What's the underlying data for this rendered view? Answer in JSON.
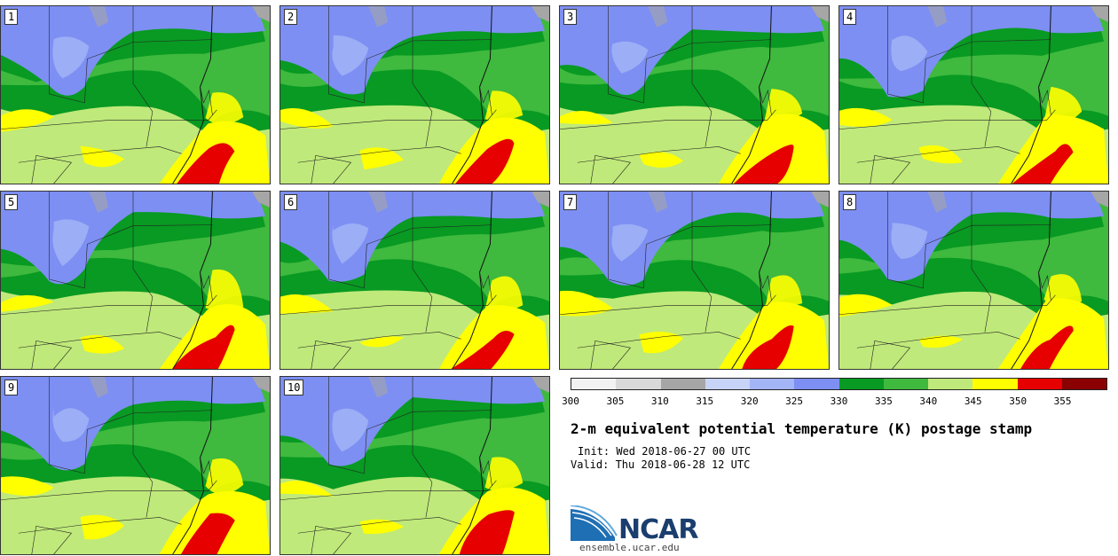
{
  "title": "2-m equivalent potential temperature (K) postage stamp",
  "init": "Init: Wed 2018-06-27 00 UTC",
  "valid": "Valid: Thu 2018-06-28 12 UTC",
  "logo": {
    "name": "NCAR",
    "url_text": "ensemble.ucar.edu"
  },
  "panels": [
    {
      "member": "1"
    },
    {
      "member": "2"
    },
    {
      "member": "3"
    },
    {
      "member": "4"
    },
    {
      "member": "5"
    },
    {
      "member": "6"
    },
    {
      "member": "7"
    },
    {
      "member": "8"
    },
    {
      "member": "9"
    },
    {
      "member": "10"
    }
  ],
  "colorbar": {
    "units": "K",
    "ticks": [
      "300",
      "305",
      "310",
      "315",
      "320",
      "325",
      "330",
      "335",
      "340",
      "345",
      "350",
      "355"
    ],
    "colors": [
      "#f2f2f2",
      "#d9d9d9",
      "#a6a6a6",
      "#c7d3f7",
      "#a3b5f6",
      "#7d8ff2",
      "#089a22",
      "#3fb93e",
      "#bfe97a",
      "#ffff00",
      "#e60000",
      "#8b0000"
    ]
  }
}
